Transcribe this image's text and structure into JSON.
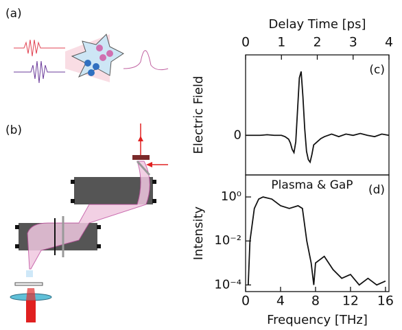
{
  "panels": {
    "a": "(a)",
    "b": "(b)"
  },
  "chart_data": [
    {
      "type": "line",
      "x_label": "Delay Time [ps]",
      "y_label": "Electric Field",
      "annotation": "(c)",
      "xlim": [
        0,
        4
      ],
      "xticks": [
        0,
        1,
        2,
        3,
        4
      ],
      "ylim": [
        -0.62,
        1.26
      ],
      "yticks": [
        0
      ],
      "log_y": false,
      "x_axis": "top",
      "series": [
        {
          "color": "#111111",
          "x": [
            0,
            0.2,
            0.4,
            0.6,
            0.8,
            1.0,
            1.1,
            1.2,
            1.25,
            1.3,
            1.35,
            1.4,
            1.45,
            1.5,
            1.55,
            1.6,
            1.65,
            1.7,
            1.75,
            1.8,
            1.85,
            1.9,
            2.0,
            2.1,
            2.2,
            2.4,
            2.6,
            2.8,
            3.0,
            3.2,
            3.4,
            3.6,
            3.8,
            4.0
          ],
          "values": [
            0,
            0,
            0,
            0.01,
            0,
            0,
            -0.02,
            -0.06,
            -0.12,
            -0.22,
            -0.27,
            -0.1,
            0.4,
            0.9,
            1.0,
            0.6,
            0.1,
            -0.25,
            -0.38,
            -0.42,
            -0.3,
            -0.15,
            -0.1,
            -0.05,
            -0.02,
            0.02,
            -0.02,
            0.02,
            0,
            0.03,
            0,
            -0.02,
            0.02,
            0
          ]
        }
      ]
    },
    {
      "type": "line",
      "x_label": "Frequency [THz]",
      "y_label": "Intensity",
      "annotation": "(d)",
      "subtitle": "Plasma & GaP",
      "xlim": [
        0,
        16.4
      ],
      "xticks": [
        0,
        4,
        8,
        12,
        16
      ],
      "ylim": [
        5e-05,
        10
      ],
      "log_y": true,
      "x_axis": "bottom",
      "yticks": [
        {
          "value": 1,
          "label": "10⁰"
        },
        {
          "value": 0.01,
          "label": "10⁻²"
        },
        {
          "value": 0.0001,
          "label": "10⁻⁴"
        }
      ],
      "series": [
        {
          "color": "#111111",
          "x": [
            0.3,
            0.5,
            1,
            1.5,
            2,
            3,
            4,
            5,
            6,
            6.5,
            7,
            7.5,
            7.8,
            8,
            9,
            10,
            11,
            12,
            13,
            14,
            15,
            16
          ],
          "values": [
            0.0001,
            0.01,
            0.3,
            0.8,
            1,
            0.8,
            0.4,
            0.3,
            0.4,
            0.3,
            0.01,
            0.001,
            0.0001,
            0.001,
            0.002,
            0.0005,
            0.0002,
            0.0003,
            0.0001,
            0.0002,
            0.0001,
            0.00015
          ]
        }
      ]
    }
  ]
}
